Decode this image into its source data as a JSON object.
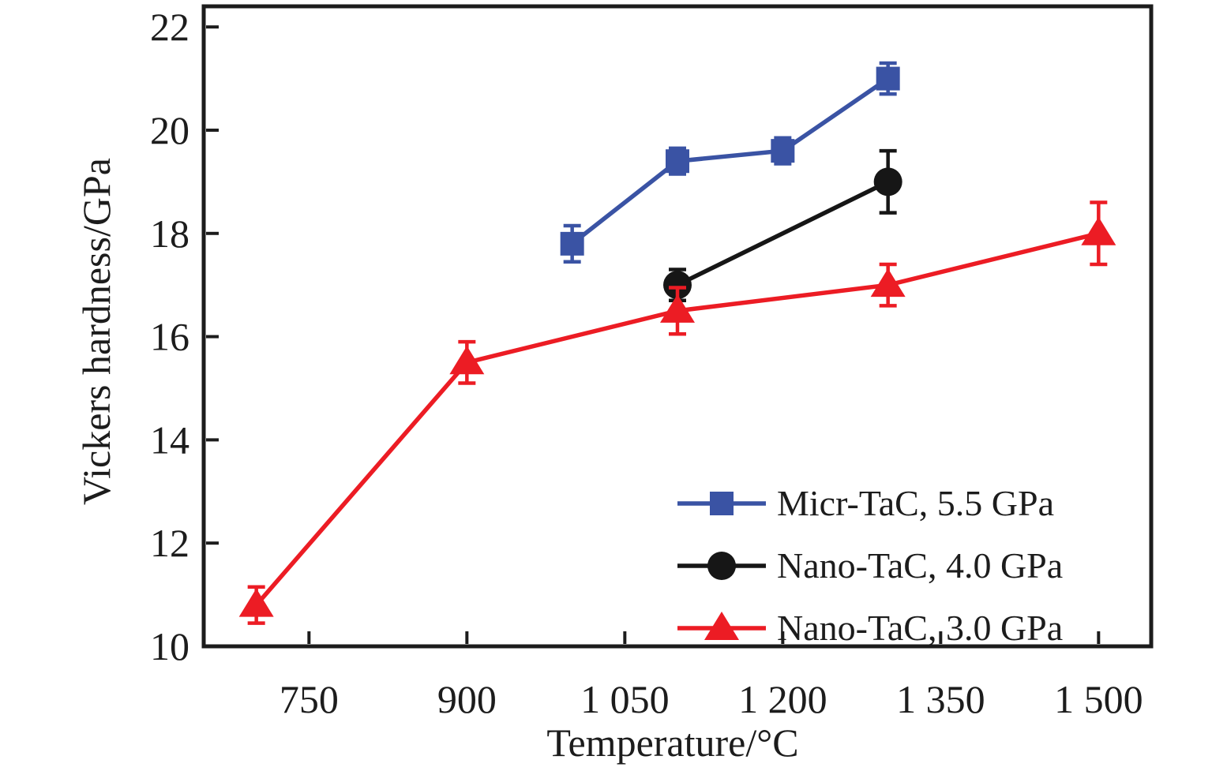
{
  "figure": {
    "x_axis_label": "Temperature/°C",
    "y_axis_label": "Vickers hardness/GPa"
  },
  "chart_data": {
    "type": "line",
    "title": "",
    "xlabel": "Temperature/°C",
    "ylabel": "Vickers hardness/GPa",
    "xlim": [
      650,
      1550
    ],
    "ylim": [
      10,
      22.4
    ],
    "grid": false,
    "legend_position": "lower right",
    "frame": true,
    "ink_color": "#1c1c1c",
    "xticks": [
      {
        "value": 750,
        "label": "750"
      },
      {
        "value": 900,
        "label": "900"
      },
      {
        "value": 1050,
        "label": "1 050"
      },
      {
        "value": 1200,
        "label": "1 200"
      },
      {
        "value": 1350,
        "label": "1 350"
      },
      {
        "value": 1500,
        "label": "1 500"
      }
    ],
    "yticks": [
      {
        "value": 10,
        "label": "10"
      },
      {
        "value": 12,
        "label": "12"
      },
      {
        "value": 14,
        "label": "14"
      },
      {
        "value": 16,
        "label": "16"
      },
      {
        "value": 18,
        "label": "18"
      },
      {
        "value": 20,
        "label": "20"
      },
      {
        "value": 22,
        "label": "22"
      }
    ],
    "series": [
      {
        "name": "Micr-TaC, 5.5 GPa",
        "color": "#3a53a4",
        "marker": "square",
        "x": [
          1000,
          1100,
          1200,
          1300
        ],
        "y": [
          17.8,
          19.4,
          19.6,
          21.0
        ],
        "yerr": [
          0.35,
          0.25,
          0.25,
          0.3
        ]
      },
      {
        "name": "Nano-TaC, 4.0 GPa",
        "color": "#161616",
        "marker": "circle",
        "x": [
          1100,
          1300
        ],
        "y": [
          17.0,
          19.0
        ],
        "yerr": [
          0.3,
          0.6
        ]
      },
      {
        "name": "Nano-TaC, 3.0 GPa",
        "color": "#ec1c24",
        "marker": "triangle",
        "x": [
          700,
          900,
          1100,
          1300,
          1500
        ],
        "y": [
          10.8,
          15.5,
          16.5,
          17.0,
          18.0
        ],
        "yerr": [
          0.35,
          0.4,
          0.45,
          0.4,
          0.6
        ]
      }
    ]
  }
}
